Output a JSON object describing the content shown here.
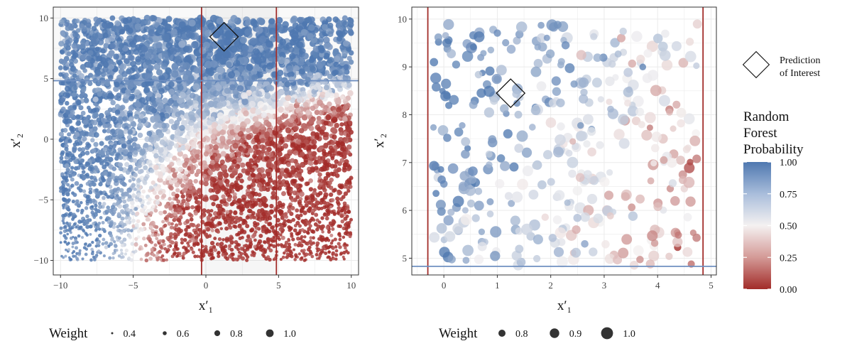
{
  "chart_data": [
    {
      "type": "scatter",
      "panel": "left",
      "xlabel": "x′₁",
      "ylabel": "x′₂",
      "xlim": [
        -10.5,
        10.5
      ],
      "ylim": [
        -11.2,
        10.9
      ],
      "x_ticks": [
        -10,
        -5,
        0,
        5,
        10
      ],
      "y_ticks": [
        -10,
        -5,
        0,
        5,
        10
      ],
      "x_tick_labels": [
        "−10",
        "−5",
        "0",
        "5",
        "10"
      ],
      "y_tick_labels": [
        "−10",
        "−5",
        "0",
        "5",
        "10"
      ],
      "vlines": [
        -0.3,
        4.85
      ],
      "hlines": [
        4.83
      ],
      "prediction_of_interest": {
        "x": 1.25,
        "y": 8.45
      },
      "grid": true,
      "point_count_estimate": 5000,
      "weight_legend": {
        "title": "Weight",
        "values": [
          "0.4",
          "0.6",
          "0.8",
          "1.0"
        ]
      }
    },
    {
      "type": "scatter",
      "panel": "right",
      "xlabel": "x′₁",
      "ylabel": "x′₂",
      "xlim": [
        -0.6,
        5.1
      ],
      "ylim": [
        4.65,
        10.25
      ],
      "x_ticks": [
        0,
        1,
        2,
        3,
        4,
        5
      ],
      "y_ticks": [
        5,
        6,
        7,
        8,
        9,
        10
      ],
      "x_tick_labels": [
        "0",
        "1",
        "2",
        "3",
        "4",
        "5"
      ],
      "y_tick_labels": [
        "5",
        "6",
        "7",
        "8",
        "9",
        "10"
      ],
      "vlines": [
        -0.3,
        4.85
      ],
      "hlines": [
        4.83
      ],
      "prediction_of_interest": {
        "x": 1.25,
        "y": 8.45
      },
      "grid": true,
      "point_count_estimate": 400,
      "weight_legend": {
        "title": "Weight",
        "values": [
          "0.8",
          "0.9",
          "1.0"
        ]
      }
    }
  ],
  "legend": {
    "shape_label_line1": "Prediction",
    "shape_label_line2": "of Interest",
    "color_title_line1": "Random",
    "color_title_line2": "Forest",
    "color_title_line3": "Probability",
    "colorbar_ticks": [
      "1.00",
      "0.75",
      "0.50",
      "0.25",
      "0.00"
    ],
    "colors": {
      "high": "#4f78b0",
      "mid": "#f4f1f1",
      "low": "#a22c29"
    }
  }
}
